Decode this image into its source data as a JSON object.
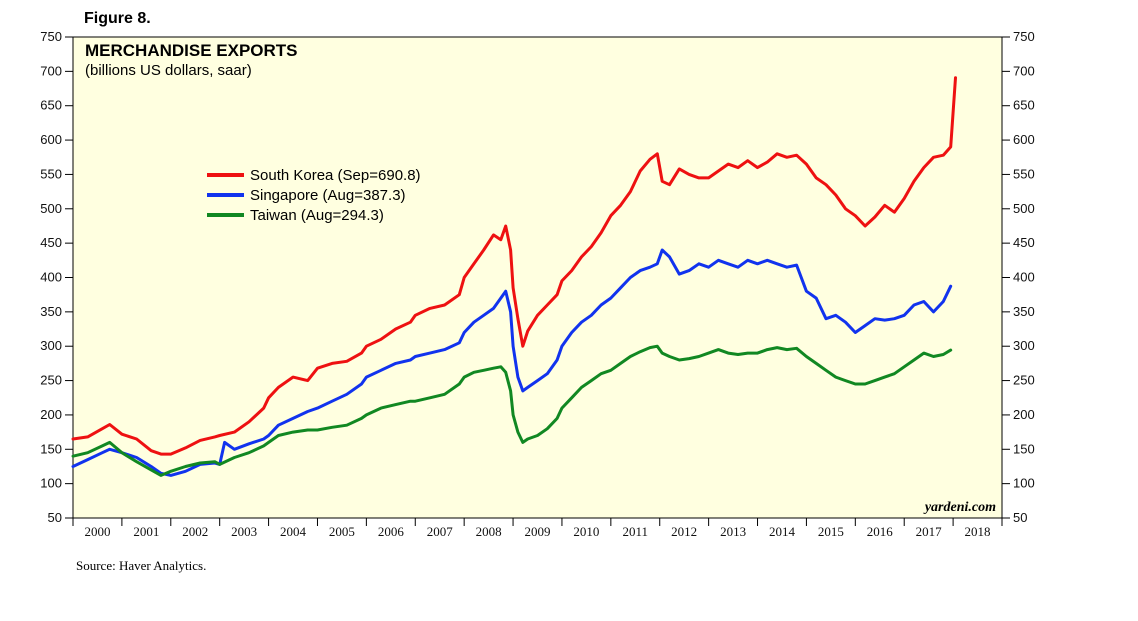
{
  "figure_label": "Figure 8.",
  "source": "Source: Haver Analytics.",
  "watermark": "yardeni.com",
  "colors": {
    "background": "#FFFFE0",
    "South Korea": "#EE1111",
    "Singapore": "#1133EE",
    "Taiwan": "#118822"
  },
  "chart_data": {
    "type": "line",
    "title": "MERCHANDISE EXPORTS",
    "subtitle": "(billions US dollars, saar)",
    "xlabel": "",
    "ylabel": "",
    "ylim": [
      50,
      750
    ],
    "yticks": [
      50,
      100,
      150,
      200,
      250,
      300,
      350,
      400,
      450,
      500,
      550,
      600,
      650,
      700,
      750
    ],
    "xlim": [
      2000,
      2019
    ],
    "year_labels": [
      "2000",
      "2001",
      "2002",
      "2003",
      "2004",
      "2005",
      "2006",
      "2007",
      "2008",
      "2009",
      "2010",
      "2011",
      "2012",
      "2013",
      "2014",
      "2015",
      "2016",
      "2017",
      "2018"
    ],
    "grid": false,
    "legend_position": "upper-left",
    "right_axis_mirrors_left": true,
    "series": [
      {
        "name": "South Korea",
        "legend": "South Korea (Sep=690.8)",
        "points": [
          [
            2000.0,
            165
          ],
          [
            2000.3,
            168
          ],
          [
            2000.6,
            180
          ],
          [
            2000.75,
            186
          ],
          [
            2001.0,
            172
          ],
          [
            2001.3,
            165
          ],
          [
            2001.6,
            148
          ],
          [
            2001.8,
            143
          ],
          [
            2002.0,
            143
          ],
          [
            2002.3,
            152
          ],
          [
            2002.6,
            163
          ],
          [
            2002.9,
            168
          ],
          [
            2003.0,
            170
          ],
          [
            2003.3,
            175
          ],
          [
            2003.6,
            190
          ],
          [
            2003.9,
            210
          ],
          [
            2004.0,
            225
          ],
          [
            2004.2,
            240
          ],
          [
            2004.5,
            255
          ],
          [
            2004.8,
            250
          ],
          [
            2005.0,
            268
          ],
          [
            2005.3,
            275
          ],
          [
            2005.6,
            278
          ],
          [
            2005.9,
            290
          ],
          [
            2006.0,
            300
          ],
          [
            2006.3,
            310
          ],
          [
            2006.6,
            325
          ],
          [
            2006.9,
            335
          ],
          [
            2007.0,
            345
          ],
          [
            2007.3,
            355
          ],
          [
            2007.6,
            360
          ],
          [
            2007.9,
            375
          ],
          [
            2008.0,
            400
          ],
          [
            2008.2,
            420
          ],
          [
            2008.4,
            440
          ],
          [
            2008.6,
            462
          ],
          [
            2008.75,
            455
          ],
          [
            2008.85,
            475
          ],
          [
            2008.95,
            440
          ],
          [
            2009.0,
            385
          ],
          [
            2009.1,
            340
          ],
          [
            2009.2,
            300
          ],
          [
            2009.3,
            322
          ],
          [
            2009.5,
            345
          ],
          [
            2009.7,
            360
          ],
          [
            2009.9,
            375
          ],
          [
            2010.0,
            395
          ],
          [
            2010.2,
            410
          ],
          [
            2010.4,
            430
          ],
          [
            2010.6,
            445
          ],
          [
            2010.8,
            465
          ],
          [
            2011.0,
            490
          ],
          [
            2011.2,
            505
          ],
          [
            2011.4,
            525
          ],
          [
            2011.6,
            555
          ],
          [
            2011.8,
            572
          ],
          [
            2011.95,
            580
          ],
          [
            2012.05,
            540
          ],
          [
            2012.2,
            535
          ],
          [
            2012.4,
            558
          ],
          [
            2012.6,
            550
          ],
          [
            2012.8,
            545
          ],
          [
            2013.0,
            545
          ],
          [
            2013.2,
            555
          ],
          [
            2013.4,
            565
          ],
          [
            2013.6,
            560
          ],
          [
            2013.8,
            570
          ],
          [
            2014.0,
            560
          ],
          [
            2014.2,
            568
          ],
          [
            2014.4,
            580
          ],
          [
            2014.6,
            575
          ],
          [
            2014.8,
            578
          ],
          [
            2015.0,
            565
          ],
          [
            2015.2,
            545
          ],
          [
            2015.4,
            535
          ],
          [
            2015.6,
            520
          ],
          [
            2015.8,
            500
          ],
          [
            2016.0,
            490
          ],
          [
            2016.2,
            475
          ],
          [
            2016.4,
            488
          ],
          [
            2016.6,
            505
          ],
          [
            2016.8,
            495
          ],
          [
            2017.0,
            515
          ],
          [
            2017.2,
            540
          ],
          [
            2017.4,
            560
          ],
          [
            2017.6,
            575
          ],
          [
            2017.8,
            578
          ],
          [
            2017.95,
            590
          ],
          [
            2018.05,
            690.8
          ]
        ]
      },
      {
        "name": "Singapore",
        "legend": "Singapore (Aug=387.3)",
        "points": [
          [
            2000.0,
            125
          ],
          [
            2000.3,
            135
          ],
          [
            2000.6,
            145
          ],
          [
            2000.75,
            150
          ],
          [
            2001.0,
            145
          ],
          [
            2001.3,
            138
          ],
          [
            2001.6,
            125
          ],
          [
            2001.8,
            115
          ],
          [
            2002.0,
            112
          ],
          [
            2002.3,
            118
          ],
          [
            2002.6,
            128
          ],
          [
            2002.9,
            130
          ],
          [
            2003.0,
            128
          ],
          [
            2003.1,
            160
          ],
          [
            2003.3,
            150
          ],
          [
            2003.6,
            158
          ],
          [
            2003.9,
            165
          ],
          [
            2004.0,
            170
          ],
          [
            2004.2,
            185
          ],
          [
            2004.5,
            195
          ],
          [
            2004.8,
            205
          ],
          [
            2005.0,
            210
          ],
          [
            2005.3,
            220
          ],
          [
            2005.6,
            230
          ],
          [
            2005.9,
            245
          ],
          [
            2006.0,
            255
          ],
          [
            2006.3,
            265
          ],
          [
            2006.6,
            275
          ],
          [
            2006.9,
            280
          ],
          [
            2007.0,
            285
          ],
          [
            2007.3,
            290
          ],
          [
            2007.6,
            295
          ],
          [
            2007.9,
            305
          ],
          [
            2008.0,
            320
          ],
          [
            2008.2,
            335
          ],
          [
            2008.4,
            345
          ],
          [
            2008.6,
            355
          ],
          [
            2008.75,
            370
          ],
          [
            2008.85,
            380
          ],
          [
            2008.95,
            350
          ],
          [
            2009.0,
            300
          ],
          [
            2009.1,
            255
          ],
          [
            2009.2,
            235
          ],
          [
            2009.3,
            240
          ],
          [
            2009.5,
            250
          ],
          [
            2009.7,
            260
          ],
          [
            2009.9,
            280
          ],
          [
            2010.0,
            300
          ],
          [
            2010.2,
            320
          ],
          [
            2010.4,
            335
          ],
          [
            2010.6,
            345
          ],
          [
            2010.8,
            360
          ],
          [
            2011.0,
            370
          ],
          [
            2011.2,
            385
          ],
          [
            2011.4,
            400
          ],
          [
            2011.6,
            410
          ],
          [
            2011.8,
            415
          ],
          [
            2011.95,
            420
          ],
          [
            2012.05,
            440
          ],
          [
            2012.2,
            430
          ],
          [
            2012.4,
            405
          ],
          [
            2012.6,
            410
          ],
          [
            2012.8,
            420
          ],
          [
            2013.0,
            415
          ],
          [
            2013.2,
            425
          ],
          [
            2013.4,
            420
          ],
          [
            2013.6,
            415
          ],
          [
            2013.8,
            425
          ],
          [
            2014.0,
            420
          ],
          [
            2014.2,
            425
          ],
          [
            2014.4,
            420
          ],
          [
            2014.6,
            415
          ],
          [
            2014.8,
            418
          ],
          [
            2015.0,
            380
          ],
          [
            2015.2,
            370
          ],
          [
            2015.4,
            340
          ],
          [
            2015.6,
            345
          ],
          [
            2015.8,
            335
          ],
          [
            2016.0,
            320
          ],
          [
            2016.2,
            330
          ],
          [
            2016.4,
            340
          ],
          [
            2016.6,
            338
          ],
          [
            2016.8,
            340
          ],
          [
            2017.0,
            345
          ],
          [
            2017.2,
            360
          ],
          [
            2017.4,
            365
          ],
          [
            2017.6,
            350
          ],
          [
            2017.8,
            365
          ],
          [
            2017.95,
            387.3
          ]
        ]
      },
      {
        "name": "Taiwan",
        "legend": "Taiwan (Aug=294.3)",
        "points": [
          [
            2000.0,
            140
          ],
          [
            2000.3,
            145
          ],
          [
            2000.6,
            155
          ],
          [
            2000.75,
            160
          ],
          [
            2001.0,
            145
          ],
          [
            2001.3,
            132
          ],
          [
            2001.6,
            120
          ],
          [
            2001.8,
            112
          ],
          [
            2002.0,
            118
          ],
          [
            2002.3,
            125
          ],
          [
            2002.6,
            130
          ],
          [
            2002.9,
            132
          ],
          [
            2003.0,
            128
          ],
          [
            2003.3,
            138
          ],
          [
            2003.6,
            145
          ],
          [
            2003.9,
            155
          ],
          [
            2004.0,
            160
          ],
          [
            2004.2,
            170
          ],
          [
            2004.5,
            175
          ],
          [
            2004.8,
            178
          ],
          [
            2005.0,
            178
          ],
          [
            2005.3,
            182
          ],
          [
            2005.6,
            185
          ],
          [
            2005.9,
            195
          ],
          [
            2006.0,
            200
          ],
          [
            2006.3,
            210
          ],
          [
            2006.6,
            215
          ],
          [
            2006.9,
            220
          ],
          [
            2007.0,
            220
          ],
          [
            2007.3,
            225
          ],
          [
            2007.6,
            230
          ],
          [
            2007.9,
            245
          ],
          [
            2008.0,
            255
          ],
          [
            2008.2,
            262
          ],
          [
            2008.4,
            265
          ],
          [
            2008.6,
            268
          ],
          [
            2008.75,
            270
          ],
          [
            2008.85,
            262
          ],
          [
            2008.95,
            235
          ],
          [
            2009.0,
            200
          ],
          [
            2009.1,
            175
          ],
          [
            2009.2,
            160
          ],
          [
            2009.3,
            165
          ],
          [
            2009.5,
            170
          ],
          [
            2009.7,
            180
          ],
          [
            2009.9,
            195
          ],
          [
            2010.0,
            210
          ],
          [
            2010.2,
            225
          ],
          [
            2010.4,
            240
          ],
          [
            2010.6,
            250
          ],
          [
            2010.8,
            260
          ],
          [
            2011.0,
            265
          ],
          [
            2011.2,
            275
          ],
          [
            2011.4,
            285
          ],
          [
            2011.6,
            292
          ],
          [
            2011.8,
            298
          ],
          [
            2011.95,
            300
          ],
          [
            2012.05,
            290
          ],
          [
            2012.2,
            285
          ],
          [
            2012.4,
            280
          ],
          [
            2012.6,
            282
          ],
          [
            2012.8,
            285
          ],
          [
            2013.0,
            290
          ],
          [
            2013.2,
            295
          ],
          [
            2013.4,
            290
          ],
          [
            2013.6,
            288
          ],
          [
            2013.8,
            290
          ],
          [
            2014.0,
            290
          ],
          [
            2014.2,
            295
          ],
          [
            2014.4,
            298
          ],
          [
            2014.6,
            295
          ],
          [
            2014.8,
            297
          ],
          [
            2015.0,
            285
          ],
          [
            2015.2,
            275
          ],
          [
            2015.4,
            265
          ],
          [
            2015.6,
            255
          ],
          [
            2015.8,
            250
          ],
          [
            2016.0,
            245
          ],
          [
            2016.2,
            245
          ],
          [
            2016.4,
            250
          ],
          [
            2016.6,
            255
          ],
          [
            2016.8,
            260
          ],
          [
            2017.0,
            270
          ],
          [
            2017.2,
            280
          ],
          [
            2017.4,
            290
          ],
          [
            2017.6,
            285
          ],
          [
            2017.8,
            288
          ],
          [
            2017.95,
            294.3
          ]
        ]
      }
    ]
  }
}
